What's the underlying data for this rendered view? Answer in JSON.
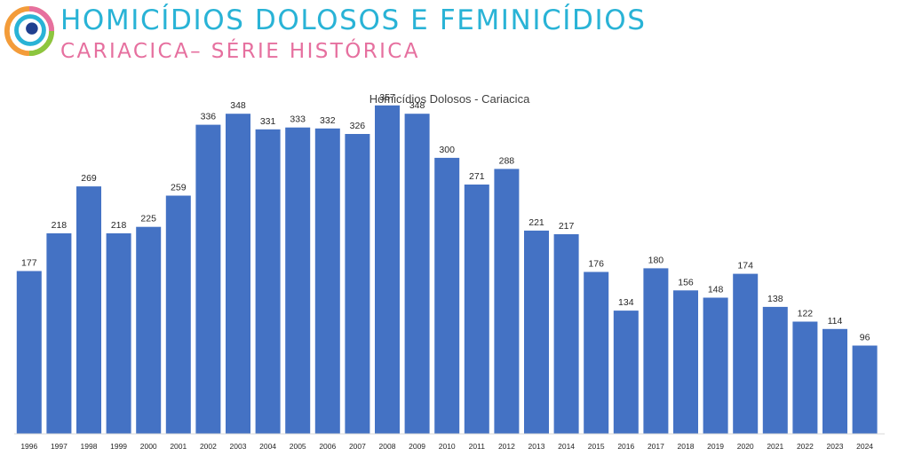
{
  "header": {
    "title": "HOMICÍDIOS DOLOSOS E FEMINICÍDIOS",
    "subtitle": "CARIACICA– SÉRIE HISTÓRICA",
    "title_color": "#29b3d6",
    "subtitle_color": "#e6709f",
    "logo_icon": "circular-eye-logo-icon"
  },
  "chart_data": {
    "type": "bar",
    "title": "Homicídios Dolosos - Cariacica",
    "xlabel": "",
    "ylabel": "",
    "categories": [
      "1996",
      "1997",
      "1998",
      "1999",
      "2000",
      "2001",
      "2002",
      "2003",
      "2004",
      "2005",
      "2006",
      "2007",
      "2008",
      "2009",
      "2010",
      "2011",
      "2012",
      "2013",
      "2014",
      "2015",
      "2016",
      "2017",
      "2018",
      "2019",
      "2020",
      "2021",
      "2022",
      "2023",
      "2024"
    ],
    "values": [
      177,
      218,
      269,
      218,
      225,
      259,
      336,
      348,
      331,
      333,
      332,
      326,
      357,
      348,
      300,
      271,
      288,
      221,
      217,
      176,
      134,
      180,
      156,
      148,
      174,
      138,
      122,
      114,
      96
    ],
    "ylim": [
      0,
      380
    ],
    "grid": false,
    "data_labels": true,
    "bar_color": "#4472c4"
  }
}
